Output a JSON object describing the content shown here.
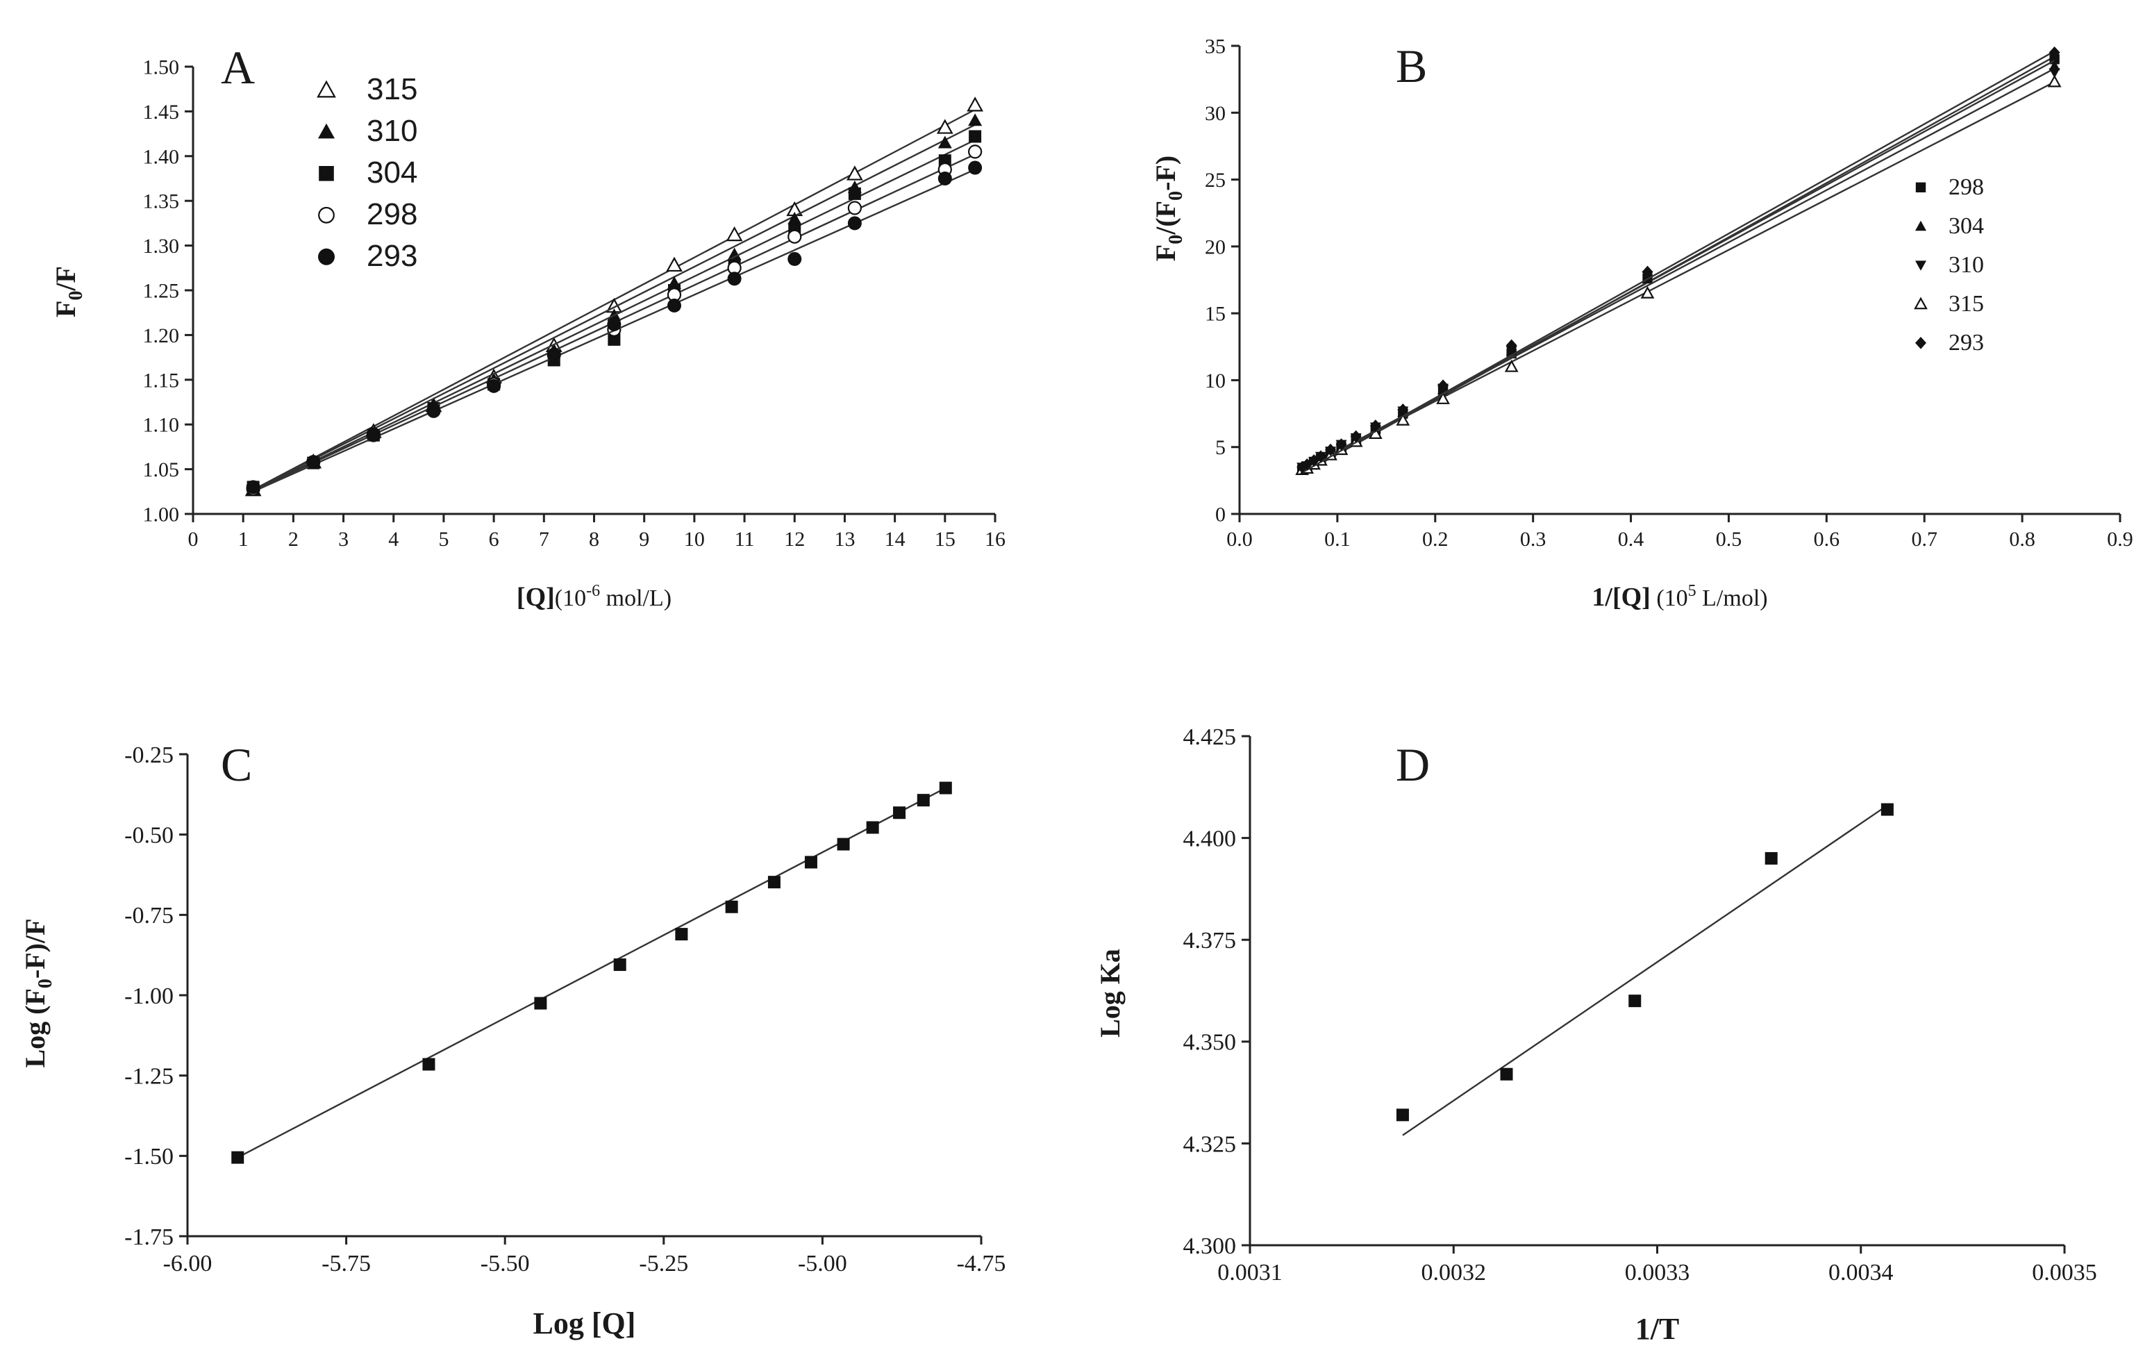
{
  "chart_data": [
    {
      "panel": "A",
      "type": "scatter",
      "ylabel_main": "F",
      "ylabel_sub": "0",
      "ylabel_tail": "/F",
      "xlabel_bold": "[Q]",
      "xlabel_rest": "(10",
      "xlabel_sup": "-6",
      "xlabel_end": " mol/L)",
      "xlim": [
        0,
        16
      ],
      "ylim": [
        1.0,
        1.5
      ],
      "xticks": [
        0,
        1,
        2,
        3,
        4,
        5,
        6,
        7,
        8,
        9,
        10,
        11,
        12,
        13,
        14,
        15,
        16
      ],
      "yticks": [
        1.0,
        1.05,
        1.1,
        1.15,
        1.2,
        1.25,
        1.3,
        1.35,
        1.4,
        1.45,
        1.5
      ],
      "ytick_labels": [
        "1.00",
        "1.05",
        "1.10",
        "1.15",
        "1.20",
        "1.25",
        "1.30",
        "1.35",
        "1.40",
        "1.45",
        "1.50"
      ],
      "legend_position": "top-left",
      "series": [
        {
          "name": "315",
          "marker": "tri-open",
          "x": [
            1.2,
            2.4,
            3.6,
            4.8,
            6.0,
            7.2,
            8.4,
            9.6,
            10.8,
            12.0,
            13.2,
            15.0,
            15.6
          ],
          "y": [
            1.027,
            1.058,
            1.092,
            1.121,
            1.153,
            1.188,
            1.232,
            1.278,
            1.312,
            1.34,
            1.38,
            1.432,
            1.457
          ],
          "fit": [
            [
              1.2,
              1.027
            ],
            [
              15.6,
              1.452
            ]
          ]
        },
        {
          "name": "310",
          "marker": "tri-filled",
          "x": [
            1.2,
            2.4,
            3.6,
            4.8,
            6.0,
            7.2,
            8.4,
            9.6,
            10.8,
            12.0,
            13.2,
            15.0,
            15.6
          ],
          "y": [
            1.027,
            1.058,
            1.09,
            1.12,
            1.15,
            1.183,
            1.222,
            1.258,
            1.29,
            1.33,
            1.365,
            1.415,
            1.44
          ],
          "fit": [
            [
              1.2,
              1.027
            ],
            [
              15.6,
              1.435
            ]
          ]
        },
        {
          "name": "304",
          "marker": "square-filled",
          "x": [
            1.2,
            2.4,
            3.6,
            4.8,
            6.0,
            7.2,
            8.4,
            9.6,
            10.8,
            12.0,
            13.2,
            15.0,
            15.6
          ],
          "y": [
            1.03,
            1.057,
            1.088,
            1.118,
            1.145,
            1.172,
            1.195,
            1.25,
            1.278,
            1.318,
            1.358,
            1.395,
            1.422
          ],
          "fit": [
            [
              1.2,
              1.026
            ],
            [
              15.6,
              1.418
            ]
          ]
        },
        {
          "name": "298",
          "marker": "circle-open",
          "x": [
            1.2,
            2.4,
            3.6,
            4.8,
            6.0,
            7.2,
            8.4,
            9.6,
            10.8,
            12.0,
            13.2,
            15.0,
            15.6
          ],
          "y": [
            1.028,
            1.058,
            1.089,
            1.116,
            1.145,
            1.178,
            1.206,
            1.245,
            1.275,
            1.31,
            1.342,
            1.385,
            1.405
          ],
          "fit": [
            [
              1.2,
              1.026
            ],
            [
              15.6,
              1.402
            ]
          ]
        },
        {
          "name": "293",
          "marker": "circle-filled",
          "x": [
            1.2,
            2.4,
            3.6,
            4.8,
            6.0,
            7.2,
            8.4,
            9.6,
            10.8,
            12.0,
            13.2,
            15.0,
            15.6
          ],
          "y": [
            1.03,
            1.058,
            1.088,
            1.115,
            1.143,
            1.178,
            1.212,
            1.233,
            1.263,
            1.285,
            1.325,
            1.375,
            1.387
          ],
          "fit": [
            [
              1.2,
              1.025
            ],
            [
              15.6,
              1.385
            ]
          ]
        }
      ]
    },
    {
      "panel": "B",
      "type": "scatter",
      "ylabel_main": "F",
      "ylabel_sub": "0",
      "ylabel_tail": "/(F",
      "ylabel_sub2": "0",
      "ylabel_end": "-F)",
      "xlabel_bold": "1/[Q]",
      "xlabel_rest": " (10",
      "xlabel_sup": "5",
      "xlabel_end": " L/mol)",
      "xlim": [
        0,
        0.9
      ],
      "ylim": [
        0,
        35
      ],
      "xticks": [
        0,
        0.1,
        0.2,
        0.3,
        0.4,
        0.5,
        0.6,
        0.7,
        0.8,
        0.9
      ],
      "xtick_labels": [
        "0.0",
        "0.1",
        "0.2",
        "0.3",
        "0.4",
        "0.5",
        "0.6",
        "0.7",
        "0.8",
        "0.9"
      ],
      "yticks": [
        0,
        5,
        10,
        15,
        20,
        25,
        30,
        35
      ],
      "ytick_labels": [
        "0",
        "5",
        "10",
        "15",
        "20",
        "25",
        "30",
        "35"
      ],
      "legend_position": "right",
      "series": [
        {
          "name": "298",
          "marker": "square-filled",
          "x": [
            0.064,
            0.069,
            0.076,
            0.083,
            0.093,
            0.104,
            0.119,
            0.139,
            0.167,
            0.208,
            0.278,
            0.417,
            0.833
          ],
          "y": [
            3.3,
            3.5,
            3.9,
            4.1,
            4.6,
            5.0,
            5.6,
            6.3,
            7.5,
            9.2,
            12.0,
            17.6,
            34.0
          ],
          "fit": [
            [
              0.064,
              3.0
            ],
            [
              0.833,
              34.2
            ]
          ]
        },
        {
          "name": "304",
          "marker": "tri-filled",
          "x": [
            0.064,
            0.069,
            0.076,
            0.083,
            0.093,
            0.104,
            0.119,
            0.139,
            0.167,
            0.208,
            0.278,
            0.417,
            0.833
          ],
          "y": [
            3.4,
            3.6,
            3.8,
            4.2,
            4.6,
            5.0,
            5.6,
            6.4,
            7.6,
            9.3,
            12.2,
            17.6,
            33.5
          ],
          "fit": [
            [
              0.064,
              3.2
            ],
            [
              0.833,
              33.9
            ]
          ]
        },
        {
          "name": "310",
          "marker": "tri-down-filled",
          "x": [
            0.064,
            0.069,
            0.076,
            0.083,
            0.093,
            0.104,
            0.119,
            0.139,
            0.167,
            0.208,
            0.278,
            0.417,
            0.833
          ],
          "y": [
            3.5,
            3.6,
            3.9,
            4.3,
            4.7,
            5.2,
            5.7,
            6.5,
            7.7,
            9.4,
            12.2,
            17.8,
            33.0
          ],
          "fit": [
            [
              0.064,
              3.3
            ],
            [
              0.833,
              33.3
            ]
          ]
        },
        {
          "name": "315",
          "marker": "tri-open",
          "x": [
            0.064,
            0.069,
            0.076,
            0.083,
            0.093,
            0.104,
            0.119,
            0.139,
            0.167,
            0.208,
            0.278,
            0.417,
            0.833
          ],
          "y": [
            3.3,
            3.4,
            3.7,
            4.0,
            4.4,
            4.8,
            5.4,
            6.0,
            7.0,
            8.6,
            11.0,
            16.5,
            32.3
          ],
          "fit": [
            [
              0.064,
              3.3
            ],
            [
              0.833,
              32.3
            ]
          ]
        },
        {
          "name": "293",
          "marker": "diamond-filled",
          "x": [
            0.064,
            0.069,
            0.076,
            0.083,
            0.093,
            0.104,
            0.119,
            0.139,
            0.167,
            0.208,
            0.278,
            0.417,
            0.833
          ],
          "y": [
            3.5,
            3.7,
            4.0,
            4.3,
            4.8,
            5.2,
            5.8,
            6.6,
            7.8,
            9.6,
            12.6,
            18.1,
            34.5
          ],
          "fit": [
            [
              0.064,
              3.1
            ],
            [
              0.833,
              34.6
            ]
          ]
        }
      ]
    },
    {
      "panel": "C",
      "type": "scatter",
      "ylabel_text": "Log (F",
      "ylabel_sub": "0",
      "ylabel_end": "-F)/F",
      "xlabel_text": "Log [Q]",
      "xlim": [
        -6.0,
        -4.75
      ],
      "ylim": [
        -1.75,
        -0.25
      ],
      "xticks": [
        -6.0,
        -5.75,
        -5.5,
        -5.25,
        -5.0,
        -4.75
      ],
      "xtick_labels": [
        "-6.00",
        "-5.75",
        "-5.50",
        "-5.25",
        "-5.00",
        "-4.75"
      ],
      "yticks": [
        -1.75,
        -1.5,
        -1.25,
        -1.0,
        -0.75,
        -0.5,
        -0.25
      ],
      "ytick_labels": [
        "-1.75",
        "-1.50",
        "-1.25",
        "-1.00",
        "-0.75",
        "-0.50",
        "-0.25"
      ],
      "series": [
        {
          "name": "",
          "marker": "square-filled",
          "x": [
            -5.921,
            -5.62,
            -5.444,
            -5.319,
            -5.222,
            -5.143,
            -5.076,
            -5.018,
            -4.967,
            -4.921,
            -4.879,
            -4.841,
            -4.806
          ],
          "y": [
            -1.505,
            -1.215,
            -1.025,
            -0.905,
            -0.81,
            -0.725,
            -0.648,
            -0.586,
            -0.53,
            -0.478,
            -0.432,
            -0.393,
            -0.355
          ],
          "fit": [
            [
              -5.921,
              -1.505
            ],
            [
              -4.806,
              -0.355
            ]
          ]
        }
      ]
    },
    {
      "panel": "D",
      "type": "scatter",
      "ylabel_text": "Log Ka",
      "xlabel_text": "1/T",
      "xlim": [
        0.0031,
        0.0035
      ],
      "ylim": [
        4.3,
        4.425
      ],
      "xticks": [
        0.0031,
        0.0032,
        0.0033,
        0.0034,
        0.0035
      ],
      "xtick_labels": [
        "0.0031",
        "0.0032",
        "0.0033",
        "0.0034",
        "0.0035"
      ],
      "yticks": [
        4.3,
        4.325,
        4.35,
        4.375,
        4.4,
        4.425
      ],
      "ytick_labels": [
        "4.300",
        "4.325",
        "4.350",
        "4.375",
        "4.400",
        "4.425"
      ],
      "series": [
        {
          "name": "",
          "marker": "square-filled",
          "x": [
            0.003175,
            0.003226,
            0.003289,
            0.003356,
            0.003413
          ],
          "y": [
            4.332,
            4.342,
            4.36,
            4.395,
            4.407
          ],
          "fit": [
            [
              0.003175,
              4.327
            ],
            [
              0.003413,
              4.408
            ]
          ]
        }
      ]
    }
  ]
}
